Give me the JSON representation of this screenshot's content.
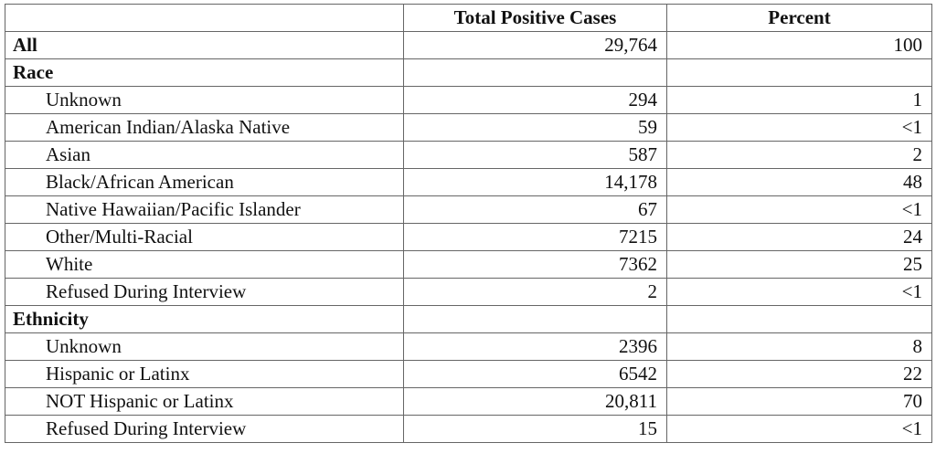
{
  "table": {
    "columns": [
      "Total Positive Cases",
      "Percent"
    ],
    "total": [
      "All",
      "29,764",
      "100"
    ],
    "sections": [
      {
        "title": "Race",
        "rows": [
          [
            "Unknown",
            "294",
            "1"
          ],
          [
            "American Indian/Alaska Native",
            "59",
            "<1"
          ],
          [
            "Asian",
            "587",
            "2"
          ],
          [
            "Black/African American",
            "14,178",
            "48"
          ],
          [
            "Native Hawaiian/Pacific Islander",
            "67",
            "<1"
          ],
          [
            "Other/Multi-Racial",
            "7215",
            "24"
          ],
          [
            "White",
            "7362",
            "25"
          ],
          [
            "Refused During Interview",
            "2",
            "<1"
          ]
        ]
      },
      {
        "title": "Ethnicity",
        "rows": [
          [
            "Unknown",
            "2396",
            "8"
          ],
          [
            "Hispanic or Latinx",
            "6542",
            "22"
          ],
          [
            "NOT Hispanic or Latinx",
            "20,811",
            "70"
          ],
          [
            "Refused During Interview",
            "15",
            "<1"
          ]
        ]
      }
    ]
  }
}
